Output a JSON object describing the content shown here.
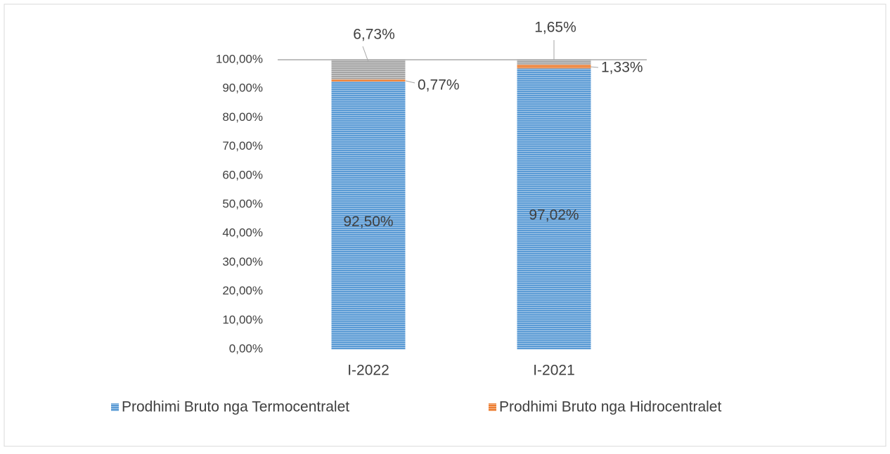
{
  "chart_data": {
    "type": "stacked_bar",
    "categories": [
      "I-2022",
      "I-2021"
    ],
    "series": [
      {
        "name": "Prodhimi Bruto nga Termocentralet",
        "color": "#5b9bd5",
        "values": [
          92.5,
          97.02
        ],
        "value_labels": [
          "92,50%",
          "97,02%"
        ]
      },
      {
        "name": "Prodhimi Bruto nga Hidrocentralet",
        "color": "#ed7d31",
        "values": [
          0.77,
          1.33
        ],
        "value_labels": [
          "0,77%",
          "1,33%"
        ]
      },
      {
        "color": "#a5a5a5",
        "values": [
          6.73,
          1.65
        ],
        "value_labels": [
          "6,73%",
          "1,65%"
        ]
      }
    ],
    "ylim": [
      0,
      100
    ],
    "yticks": [
      {
        "value": 0,
        "label": "0,00%"
      },
      {
        "value": 10,
        "label": "10,00%"
      },
      {
        "value": 20,
        "label": "20,00%"
      },
      {
        "value": 30,
        "label": "30,00%"
      },
      {
        "value": 40,
        "label": "40,00%"
      },
      {
        "value": 50,
        "label": "50,00%"
      },
      {
        "value": 60,
        "label": "60,00%"
      },
      {
        "value": 70,
        "label": "70,00%"
      },
      {
        "value": 80,
        "label": "80,00%"
      },
      {
        "value": 90,
        "label": "90,00%"
      },
      {
        "value": 100,
        "label": "100,00%"
      }
    ]
  }
}
